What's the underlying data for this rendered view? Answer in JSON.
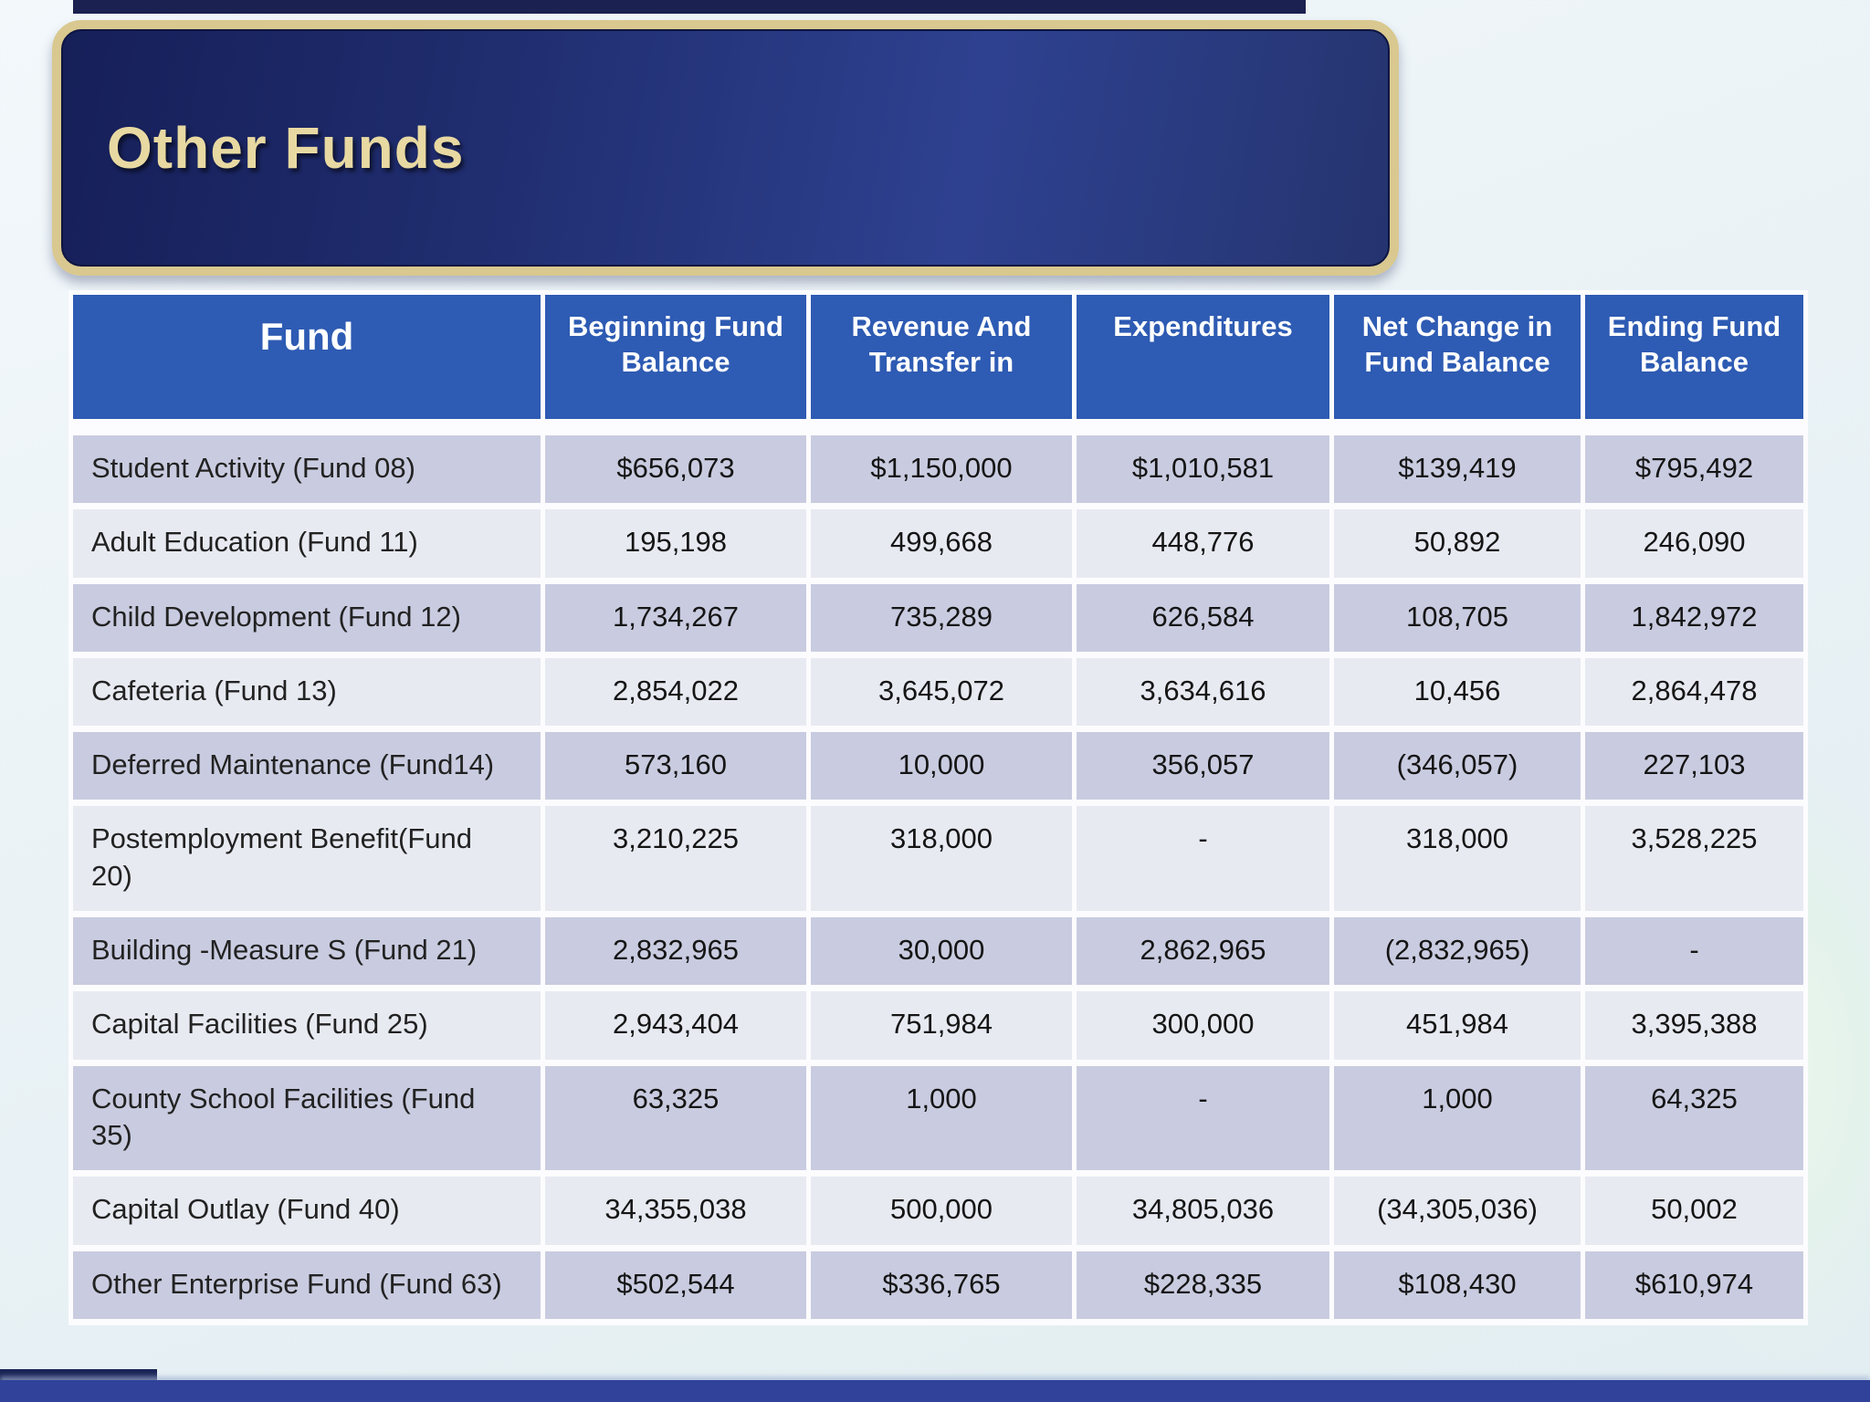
{
  "slide": {
    "title": "Other Funds",
    "colors": {
      "header_bg": "#2e5bb3",
      "row_dark": "#c9cce0",
      "row_light": "#e8eaf2",
      "banner_border": "#d9c88f",
      "banner_bg": "#1f2c6d",
      "title_text": "#e8d9a2",
      "bottom_bar": "#30429a",
      "bottom_bar_dark": "#1a2455"
    }
  },
  "table": {
    "columns": [
      "Fund",
      "Beginning Fund Balance",
      "Revenue And Transfer in",
      "Expenditures",
      "Net Change in Fund Balance",
      "Ending Fund Balance"
    ],
    "rows": [
      {
        "fund": "Student Activity  (Fund 08)",
        "values": [
          "$656,073",
          "$1,150,000",
          "$1,010,581",
          "$139,419",
          "$795,492"
        ]
      },
      {
        "fund": "Adult Education (Fund 11)",
        "values": [
          "195,198",
          "499,668",
          "448,776",
          "50,892",
          "246,090"
        ]
      },
      {
        "fund": "Child Development (Fund 12)",
        "values": [
          "1,734,267",
          "735,289",
          "626,584",
          "108,705",
          "1,842,972"
        ]
      },
      {
        "fund": "Cafeteria (Fund 13)",
        "values": [
          "2,854,022",
          "3,645,072",
          "3,634,616",
          "10,456",
          "2,864,478"
        ]
      },
      {
        "fund": "Deferred Maintenance (Fund14)",
        "values": [
          "573,160",
          "10,000",
          "356,057",
          "(346,057)",
          "227,103"
        ]
      },
      {
        "fund": "Postemployment Benefit(Fund 20)",
        "values": [
          "3,210,225",
          "318,000",
          "-",
          "318,000",
          "3,528,225"
        ]
      },
      {
        "fund": "Building -Measure S (Fund 21)",
        "values": [
          "2,832,965",
          "30,000",
          "2,862,965",
          "(2,832,965)",
          "-"
        ]
      },
      {
        "fund": "Capital Facilities (Fund 25)",
        "values": [
          "2,943,404",
          "751,984",
          "300,000",
          "451,984",
          "3,395,388"
        ]
      },
      {
        "fund": "County School Facilities (Fund 35)",
        "values": [
          "63,325",
          "1,000",
          "-",
          "1,000",
          "64,325"
        ]
      },
      {
        "fund": "Capital Outlay (Fund 40)",
        "values": [
          "34,355,038",
          "500,000",
          "34,805,036",
          "(34,305,036)",
          "50,002"
        ]
      },
      {
        "fund": "Other Enterprise Fund (Fund 63)",
        "values": [
          "$502,544",
          "$336,765",
          "$228,335",
          "$108,430",
          "$610,974"
        ]
      }
    ]
  }
}
